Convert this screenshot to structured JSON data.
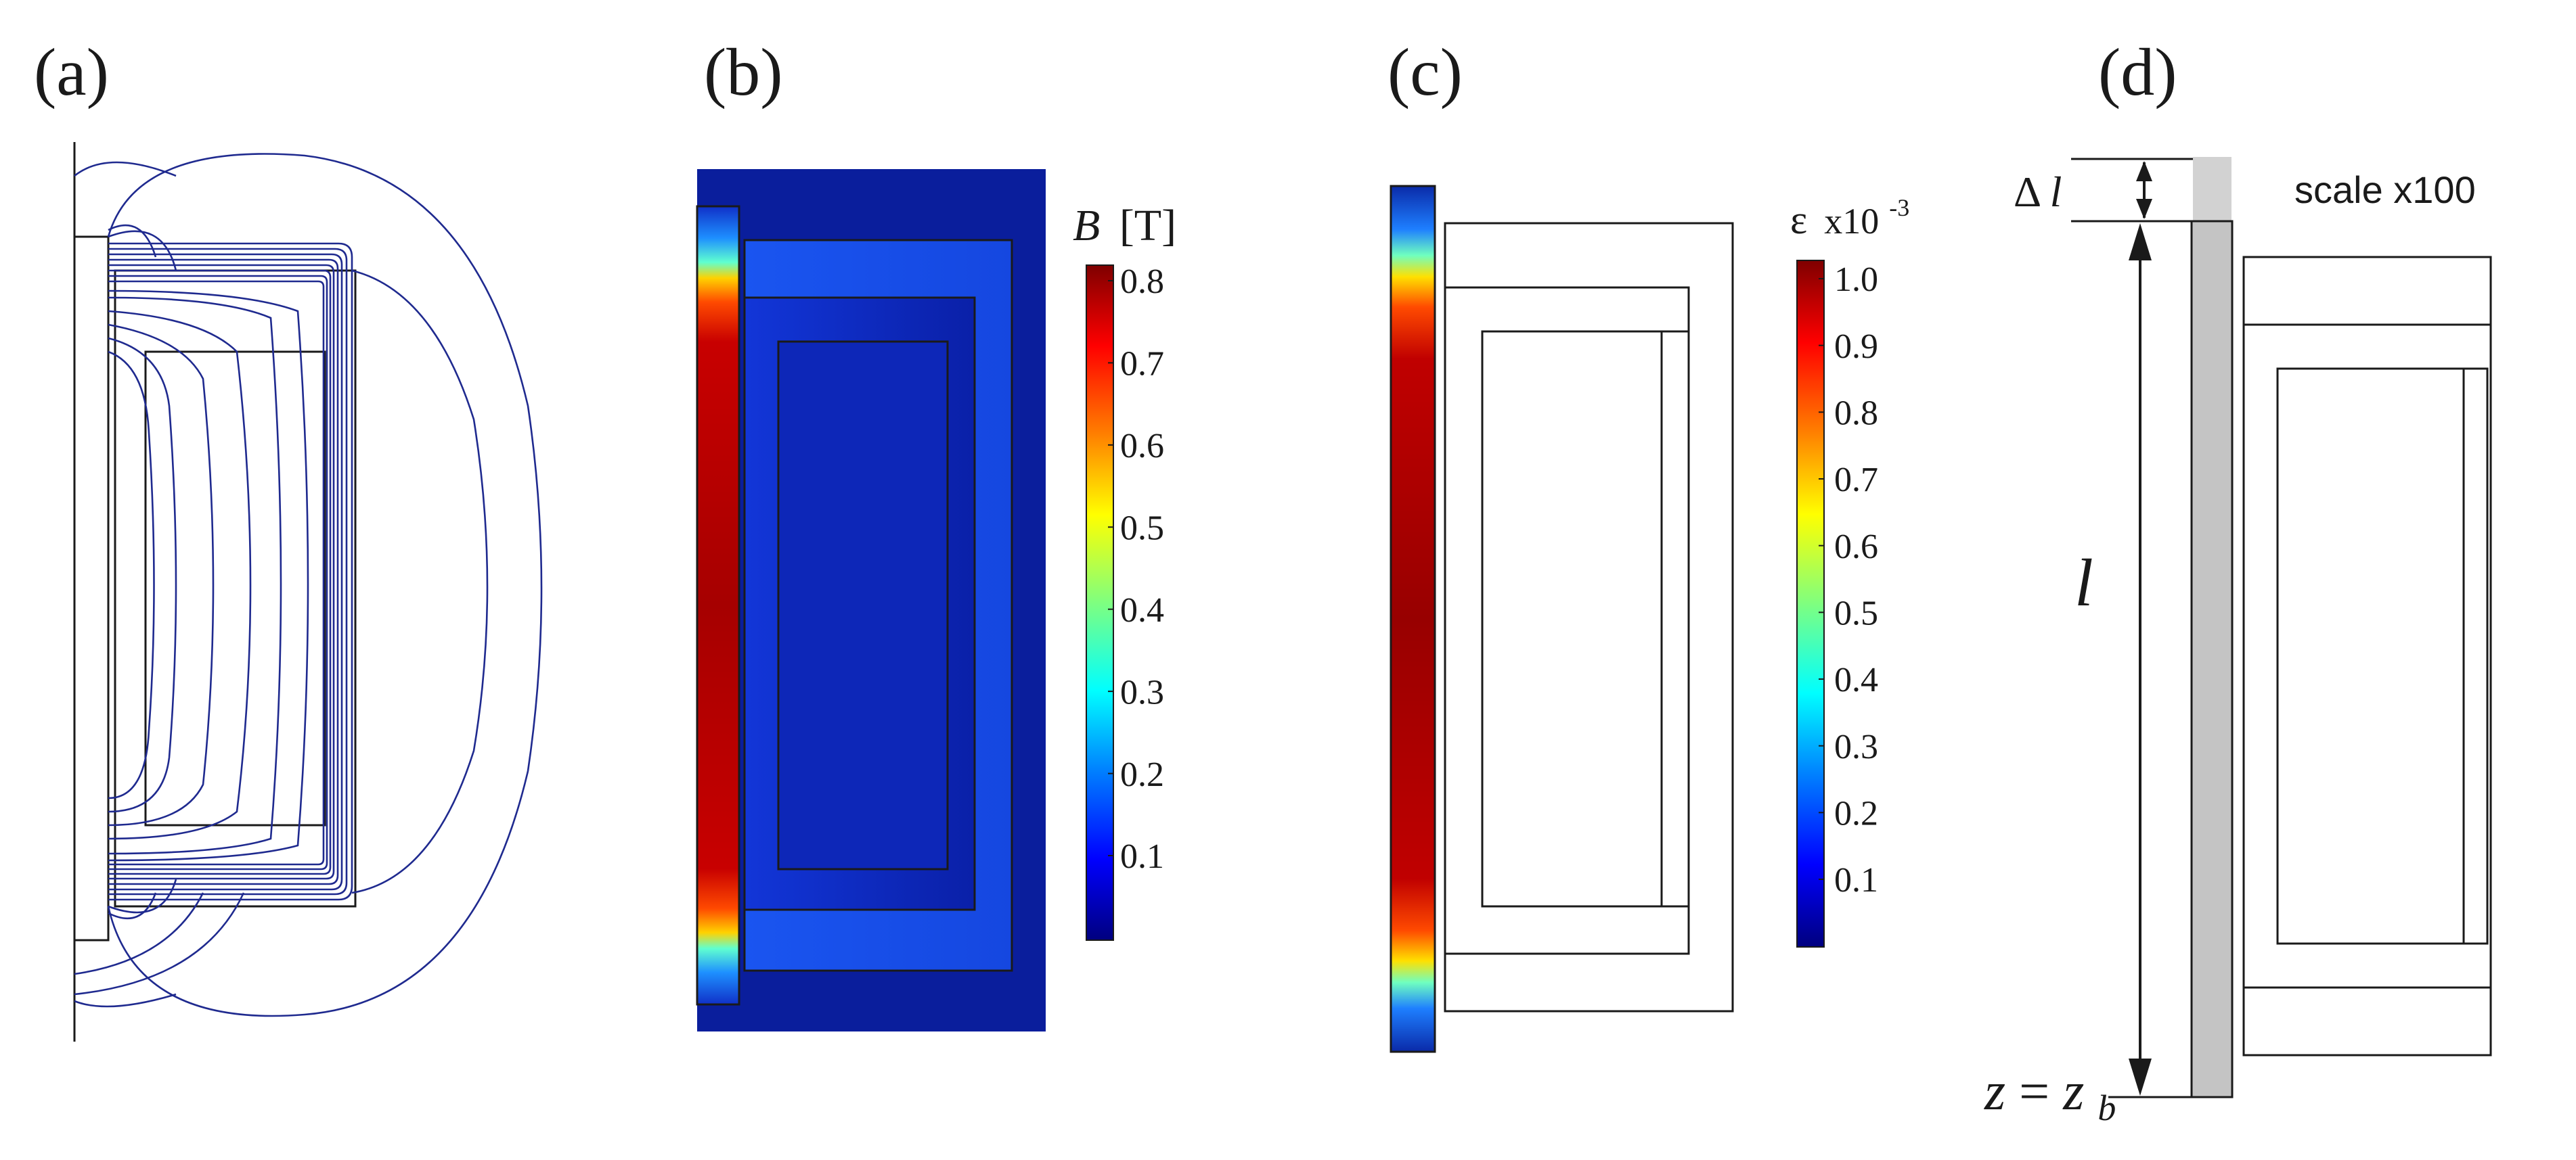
{
  "panels": [
    {
      "label": "(a)"
    },
    {
      "label": "(b)",
      "colorbar": {
        "title_symbol": "B",
        "title_unit": "[T]",
        "ticks": [
          "0.8",
          "0.7",
          "0.6",
          "0.5",
          "0.4",
          "0.3",
          "0.2",
          "0.1"
        ]
      }
    },
    {
      "label": "(c)",
      "colorbar": {
        "title_symbol": "ε",
        "title_multiplier": "x10",
        "title_exponent": "-3",
        "ticks": [
          "1.0",
          "0.9",
          "0.8",
          "0.7",
          "0.6",
          "0.5",
          "0.4",
          "0.3",
          "0.2",
          "0.1"
        ]
      }
    },
    {
      "label": "(d)",
      "scale_note": "scale x100",
      "delta_label": "Δ",
      "delta_symbol": "l",
      "length_symbol": "l",
      "z_label": "z",
      "z_equals": "=",
      "zb_base": "z",
      "zb_sub": "b"
    }
  ],
  "colors": {
    "field_lines": "#1f2a8f",
    "outline": "#1a1a1a",
    "background_field": "#0a1e9c",
    "rod_grey": "#c4c4c4",
    "jet_colormap": [
      "#00007f",
      "#0000ff",
      "#007fff",
      "#00ffff",
      "#7fff7f",
      "#ffff00",
      "#ff7f00",
      "#ff0000",
      "#7f0000"
    ]
  }
}
